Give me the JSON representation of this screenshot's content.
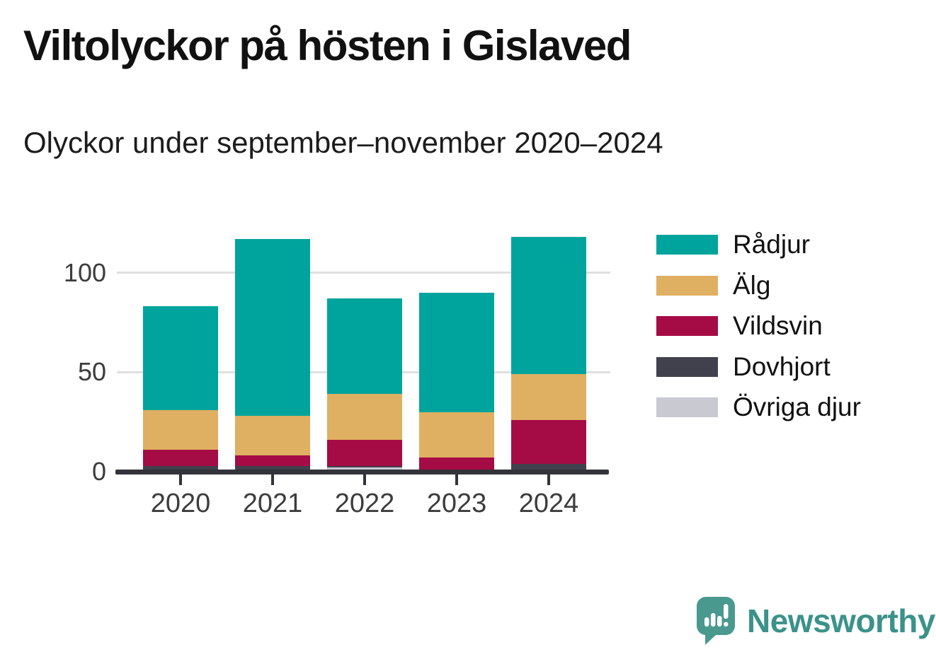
{
  "title": "Viltolyckor på hösten i Gislaved",
  "subtitle": "Olyckor under september–november 2020–2024",
  "branding": {
    "wordmark": "Newsworthy",
    "color": "#3b928a",
    "icon": "newsworthy-speech-bubble-bar-chart-icon"
  },
  "axis": {
    "baseline_color": "#33333a",
    "gridline_color": "#e0e0e0",
    "tick_label_color": "#3c3c3c"
  },
  "chart_data": {
    "type": "bar",
    "stacked": true,
    "title": "Viltolyckor på hösten i Gislaved",
    "subtitle": "Olyckor under september–november 2020–2024",
    "categories": [
      "2020",
      "2021",
      "2022",
      "2023",
      "2024"
    ],
    "series": [
      {
        "name": "Rådjur",
        "color": "#00a49c",
        "values": [
          52,
          89,
          48,
          60,
          69
        ]
      },
      {
        "name": "Älg",
        "color": "#dfaf62",
        "values": [
          20,
          20,
          23,
          23,
          23
        ]
      },
      {
        "name": "Vildsvin",
        "color": "#a50b45",
        "values": [
          8,
          5,
          13,
          7,
          22
        ]
      },
      {
        "name": "Dovhjort",
        "color": "#41414d",
        "values": [
          3,
          3,
          1,
          0,
          4
        ]
      },
      {
        "name": "Övriga djur",
        "color": "#c8c9d1",
        "values": [
          0,
          0,
          2,
          0,
          0
        ]
      }
    ],
    "stack_order_bottom_to_top": [
      "Övriga djur",
      "Dovhjort",
      "Vildsvin",
      "Älg",
      "Rådjur"
    ],
    "stacked_totals": [
      83,
      117,
      87,
      90,
      118
    ],
    "xlabel": "",
    "ylabel": "",
    "yticks": [
      0,
      50,
      100
    ],
    "ylim": [
      0,
      127
    ],
    "grid": "horizontal",
    "legend_position": "right"
  }
}
